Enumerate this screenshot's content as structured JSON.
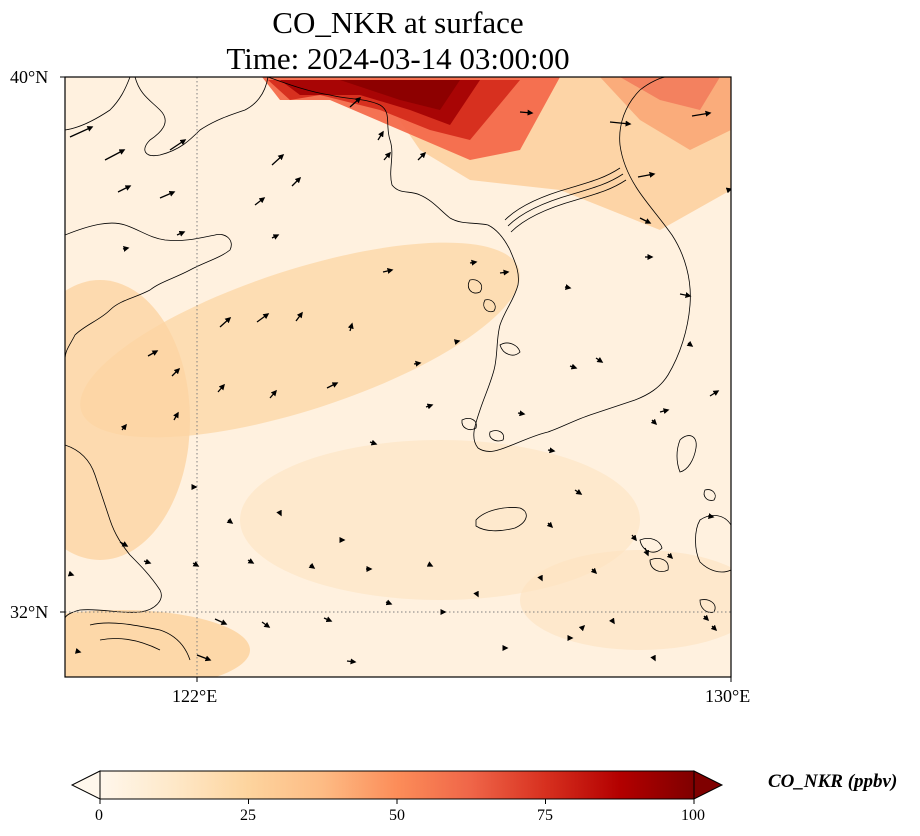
{
  "title": "CO_NKR at surface",
  "subtitle": "Time: 2024-03-14 03:00:00",
  "variable": "CO_NKR",
  "level": "surface",
  "map": {
    "lon_range": [
      120.0,
      130.0
    ],
    "lat_range": [
      31.0,
      40.0
    ],
    "gridlines": {
      "lon": [
        122,
        130
      ],
      "lat": [
        32,
        40
      ]
    },
    "x_tick_labels": [
      "122°E",
      "130°E"
    ],
    "y_tick_labels": [
      "40°N",
      "32°N"
    ],
    "gridline_style": "dotted gray",
    "overlay": "wind vectors (black arrows)",
    "coastlines": true
  },
  "colorbar": {
    "label": "CO_NKR (ppbv)",
    "cmap": "OrRd",
    "min": 0,
    "max": 100,
    "ticks": [
      "0",
      "25",
      "50",
      "75",
      "100"
    ],
    "extend": "both",
    "colors": [
      "#fff7ec",
      "#fee8c8",
      "#fdd49e",
      "#fdbb84",
      "#fc8d59",
      "#ef6548",
      "#d7301f",
      "#b30000",
      "#7f0000"
    ]
  },
  "chart_data": {
    "type": "heatmap",
    "title": "CO_NKR at surface",
    "subtitle": "Time: 2024-03-14 03:00:00",
    "xlabel": "",
    "ylabel": "",
    "x_range": [
      120.0,
      130.0
    ],
    "y_range": [
      31.0,
      40.0
    ],
    "value_range": [
      0,
      100
    ],
    "units": "ppbv",
    "high_concentration_regions": [
      {
        "lon": 125.0,
        "lat": 39.8,
        "value": 95
      },
      {
        "lon": 123.5,
        "lat": 39.9,
        "value": 90
      },
      {
        "lon": 128.8,
        "lat": 39.7,
        "value": 55
      },
      {
        "lon": 124.5,
        "lat": 39.2,
        "value": 40
      }
    ],
    "moderate_regions": [
      {
        "lon": 123.5,
        "lat": 35.5,
        "value": 25
      },
      {
        "lon": 120.5,
        "lat": 34.5,
        "value": 22
      },
      {
        "lon": 121.0,
        "lat": 31.3,
        "value": 20
      }
    ],
    "background_value": 8
  }
}
